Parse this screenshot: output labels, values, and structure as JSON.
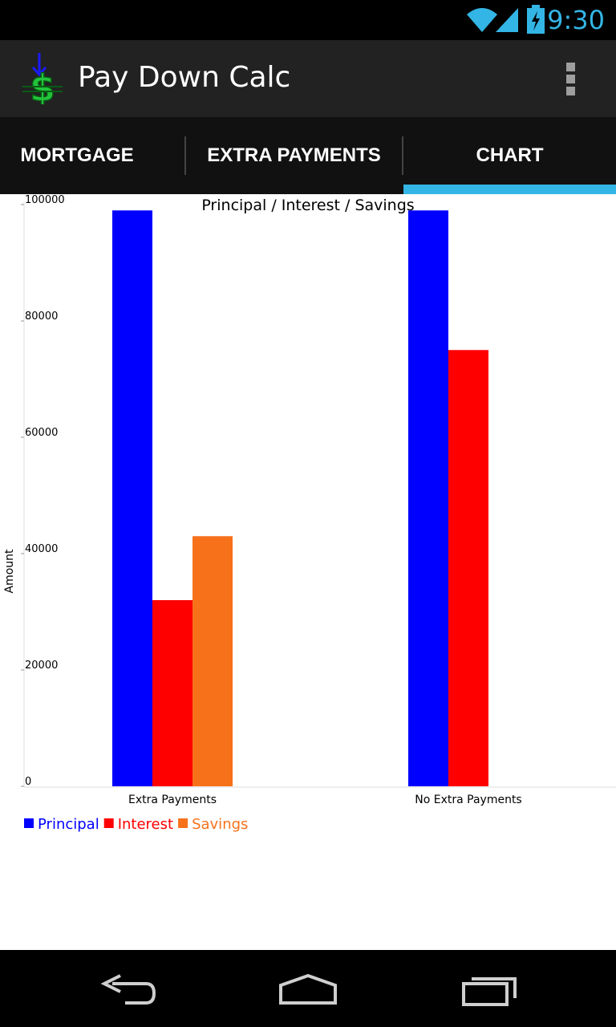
{
  "status": {
    "time": "9:30",
    "icons": [
      "wifi-icon",
      "signal-icon",
      "battery-charging-icon"
    ]
  },
  "app": {
    "title": "Pay Down Calc",
    "icon": "dollar-arrow-icon"
  },
  "tabs": [
    {
      "label": "MORTGAGE",
      "selected": false
    },
    {
      "label": "EXTRA PAYMENTS",
      "selected": false
    },
    {
      "label": "CHART",
      "selected": true
    }
  ],
  "colors": {
    "accent": "#33b5e5",
    "principal": "#0000ff",
    "interest": "#ff0000",
    "savings": "#f7711b"
  },
  "chart_data": {
    "type": "bar",
    "title": "Principal / Interest  / Savings",
    "xlabel": "",
    "ylabel": "Amount",
    "ylim": [
      0,
      100000
    ],
    "yticks": [
      "0",
      "20000",
      "40000",
      "60000",
      "80000",
      "100000"
    ],
    "categories": [
      "Extra Payments",
      "No Extra Payments"
    ],
    "series": [
      {
        "name": "Principal",
        "values": [
          99000,
          99000
        ]
      },
      {
        "name": "Interest",
        "values": [
          32000,
          75000
        ]
      },
      {
        "name": "Savings",
        "values": [
          43000,
          0
        ]
      }
    ],
    "legend": "bottom-left",
    "grid": false
  },
  "nav": {
    "buttons": [
      "back-icon",
      "home-icon",
      "recent-apps-icon"
    ]
  }
}
